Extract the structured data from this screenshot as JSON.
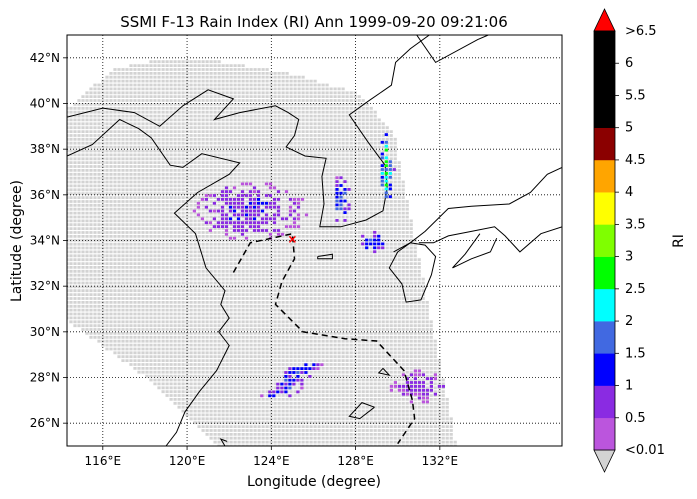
{
  "chart_data": {
    "type": "heatmap",
    "title": "SSMI F-13 Rain Index (RI) Ann 1999-09-20 09:21:06",
    "xlabel": "Longitude (degree)",
    "ylabel": "Latitude (degree)",
    "xlim": [
      114.3,
      137.8
    ],
    "ylim": [
      25.0,
      43.0
    ],
    "grid": true,
    "x_ticks": [
      {
        "value": 116,
        "label": "116°E"
      },
      {
        "value": 120,
        "label": "120°E"
      },
      {
        "value": 124,
        "label": "124°E"
      },
      {
        "value": 128,
        "label": "128°E"
      },
      {
        "value": 132,
        "label": "132°E"
      }
    ],
    "y_ticks": [
      {
        "value": 26,
        "label": "26°N"
      },
      {
        "value": 28,
        "label": "28°N"
      },
      {
        "value": 30,
        "label": "30°N"
      },
      {
        "value": 32,
        "label": "32°N"
      },
      {
        "value": 34,
        "label": "34°N"
      },
      {
        "value": 36,
        "label": "36°N"
      },
      {
        "value": 38,
        "label": "38°N"
      },
      {
        "value": 40,
        "label": "40°N"
      },
      {
        "value": 42,
        "label": "42°N"
      }
    ],
    "colorbar": {
      "label": "RI",
      "under_label": "<0.01",
      "over_label": ">6.5",
      "under_color": "#d3d3d3",
      "over_color": "#ff0000",
      "bins": [
        {
          "range": [
            0.01,
            0.5
          ],
          "color": "#bb55dd"
        },
        {
          "range": [
            0.5,
            1.0
          ],
          "color": "#8a2be2"
        },
        {
          "range": [
            1.0,
            1.5
          ],
          "color": "#0000ff"
        },
        {
          "range": [
            1.5,
            2.0
          ],
          "color": "#4169e1"
        },
        {
          "range": [
            2.0,
            2.5
          ],
          "color": "#00ffff"
        },
        {
          "range": [
            2.5,
            3.0
          ],
          "color": "#00ff00"
        },
        {
          "range": [
            3.0,
            3.5
          ],
          "color": "#7fff00"
        },
        {
          "range": [
            3.5,
            4.0
          ],
          "color": "#ffff00"
        },
        {
          "range": [
            4.0,
            4.5
          ],
          "color": "#ffa500"
        },
        {
          "range": [
            4.5,
            5.0
          ],
          "color": "#8b0000"
        },
        {
          "range": [
            5.0,
            5.5
          ],
          "color": "#000000"
        },
        {
          "range": [
            5.5,
            6.0
          ],
          "color": "#000000"
        },
        {
          "range": [
            6.0,
            6.5
          ],
          "color": "#000000"
        }
      ],
      "tick_labels": [
        "0.5",
        "1",
        "1.5",
        "2",
        "2.5",
        "3",
        "3.5",
        "4",
        "4.5",
        "5",
        "5.5",
        "6"
      ]
    },
    "swath": {
      "polygon": [
        [
          114.3,
          39.8
        ],
        [
          116.5,
          41.5
        ],
        [
          119,
          42.0
        ],
        [
          122,
          41.8
        ],
        [
          125,
          41.3
        ],
        [
          128,
          40.5
        ],
        [
          129.8,
          38.8
        ],
        [
          132.8,
          25.0
        ],
        [
          121.5,
          25.0
        ],
        [
          118,
          28.0
        ],
        [
          114.3,
          30.5
        ]
      ],
      "value_color": "#d3d3d3"
    },
    "rain_cells": [
      {
        "region": "north-china",
        "center": [
          123.0,
          35.3
        ],
        "spread": [
          2.3,
          1.1
        ],
        "value": 0.7
      },
      {
        "region": "yellow-sea-band",
        "center": [
          127.3,
          35.8
        ],
        "spread": [
          0.4,
          0.9
        ],
        "value": 1.2
      },
      {
        "region": "korea-strait",
        "center": [
          128.8,
          33.9
        ],
        "spread": [
          0.6,
          0.4
        ],
        "value": 1.1
      },
      {
        "region": "sea-of-japan-edge",
        "center": [
          129.5,
          37.2
        ],
        "spread": [
          0.3,
          1.4
        ],
        "value": 1.8
      },
      {
        "region": "east-china-sea-band",
        "center": [
          125.0,
          27.9
        ],
        "spread": [
          2.8,
          0.5
        ],
        "value": 1.0
      },
      {
        "region": "ryukyu",
        "center": [
          131.0,
          27.6
        ],
        "spread": [
          1.2,
          0.6
        ],
        "value": 0.6
      }
    ],
    "annotations": [
      {
        "type": "dashed-contour",
        "points": [
          [
            122.2,
            32.6
          ],
          [
            123,
            33.9
          ],
          [
            125,
            34.3
          ],
          [
            125.1,
            33.2
          ],
          [
            124.5,
            32.2
          ],
          [
            124.2,
            31.2
          ],
          [
            125.5,
            30.0
          ],
          [
            127.5,
            29.7
          ],
          [
            129.0,
            29.6
          ],
          [
            130.3,
            28.3
          ],
          [
            130.7,
            27.0
          ],
          [
            130.8,
            26.2
          ],
          [
            130.0,
            25.1
          ]
        ]
      },
      {
        "type": "marker",
        "point": [
          125.0,
          34.05
        ],
        "color": "#ff0000"
      }
    ]
  }
}
